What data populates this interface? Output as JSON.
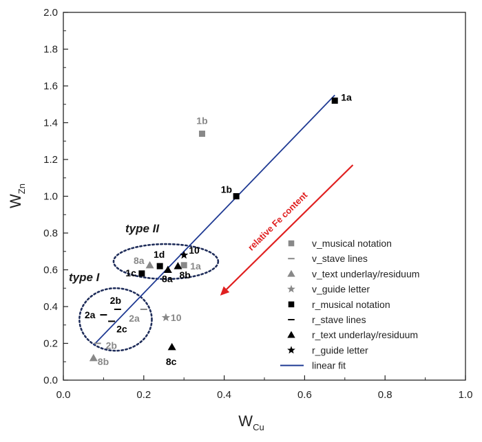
{
  "chart_data": {
    "type": "scatter",
    "xlabel_main": "W",
    "xlabel_sub": "Cu",
    "ylabel_main": "W",
    "ylabel_sub": "Zn",
    "xlim": [
      0.0,
      1.0
    ],
    "ylim": [
      0.0,
      2.0
    ],
    "xticks": [
      "0.0",
      "0.2",
      "0.4",
      "0.6",
      "0.8",
      "1.0"
    ],
    "yticks": [
      "0.0",
      "0.2",
      "0.4",
      "0.6",
      "0.8",
      "1.0",
      "1.2",
      "1.4",
      "1.6",
      "1.8",
      "2.0"
    ],
    "grid": false,
    "legend_position": "bottom-right",
    "colors": {
      "v": "#888888",
      "r": "#000000",
      "fit": "#1f3a93",
      "ellipse": "#1f2d5a",
      "arrow": "#e02020"
    },
    "series": [
      {
        "name": "v_musical notation",
        "marker": "square",
        "group": "v",
        "points": [
          {
            "x": 0.345,
            "y": 1.34,
            "label": "1b"
          },
          {
            "x": 0.3,
            "y": 0.625,
            "label": "1a"
          }
        ]
      },
      {
        "name": "v_stave lines",
        "marker": "dash",
        "group": "v",
        "points": [
          {
            "x": 0.2,
            "y": 0.385,
            "label": "2a"
          },
          {
            "x": 0.085,
            "y": 0.2,
            "label": "2b"
          }
        ]
      },
      {
        "name": "v_text underlay/residuum",
        "marker": "triangle",
        "group": "v",
        "points": [
          {
            "x": 0.215,
            "y": 0.625,
            "label": "8a"
          },
          {
            "x": 0.075,
            "y": 0.12,
            "label": "8b"
          }
        ]
      },
      {
        "name": "v_guide letter",
        "marker": "star",
        "group": "v",
        "points": [
          {
            "x": 0.255,
            "y": 0.34,
            "label": "10"
          }
        ]
      },
      {
        "name": "r_musical notation",
        "marker": "square",
        "group": "r",
        "points": [
          {
            "x": 0.675,
            "y": 1.52,
            "label": "1a"
          },
          {
            "x": 0.43,
            "y": 1.0,
            "label": "1b"
          },
          {
            "x": 0.195,
            "y": 0.58,
            "label": "1c"
          },
          {
            "x": 0.24,
            "y": 0.62,
            "label": "1d"
          }
        ]
      },
      {
        "name": "r_stave lines",
        "marker": "dash",
        "group": "r",
        "points": [
          {
            "x": 0.1,
            "y": 0.355,
            "label": "2a"
          },
          {
            "x": 0.135,
            "y": 0.385,
            "label": "2b"
          },
          {
            "x": 0.12,
            "y": 0.32,
            "label": "2c"
          }
        ]
      },
      {
        "name": "r_text underlay/residuum",
        "marker": "triangle",
        "group": "r",
        "points": [
          {
            "x": 0.26,
            "y": 0.6,
            "label": "8a"
          },
          {
            "x": 0.285,
            "y": 0.62,
            "label": "8b"
          },
          {
            "x": 0.27,
            "y": 0.18,
            "label": "8c"
          }
        ]
      },
      {
        "name": "r_guide letter",
        "marker": "star",
        "group": "r",
        "points": [
          {
            "x": 0.3,
            "y": 0.68,
            "label": "10"
          }
        ]
      }
    ],
    "fit": {
      "name": "linear fit",
      "x": [
        0.075,
        0.675
      ],
      "y": [
        0.19,
        1.55
      ]
    },
    "groups": [
      {
        "label": "type I",
        "cx": 0.13,
        "cy": 0.33,
        "rx": 0.09,
        "ry": 0.17
      },
      {
        "label": "type II",
        "cx": 0.255,
        "cy": 0.645,
        "rx": 0.13,
        "ry": 0.095
      }
    ],
    "arrow": {
      "text": "relative Fe content",
      "from": [
        0.72,
        1.17
      ],
      "to": [
        0.39,
        0.46
      ]
    }
  }
}
